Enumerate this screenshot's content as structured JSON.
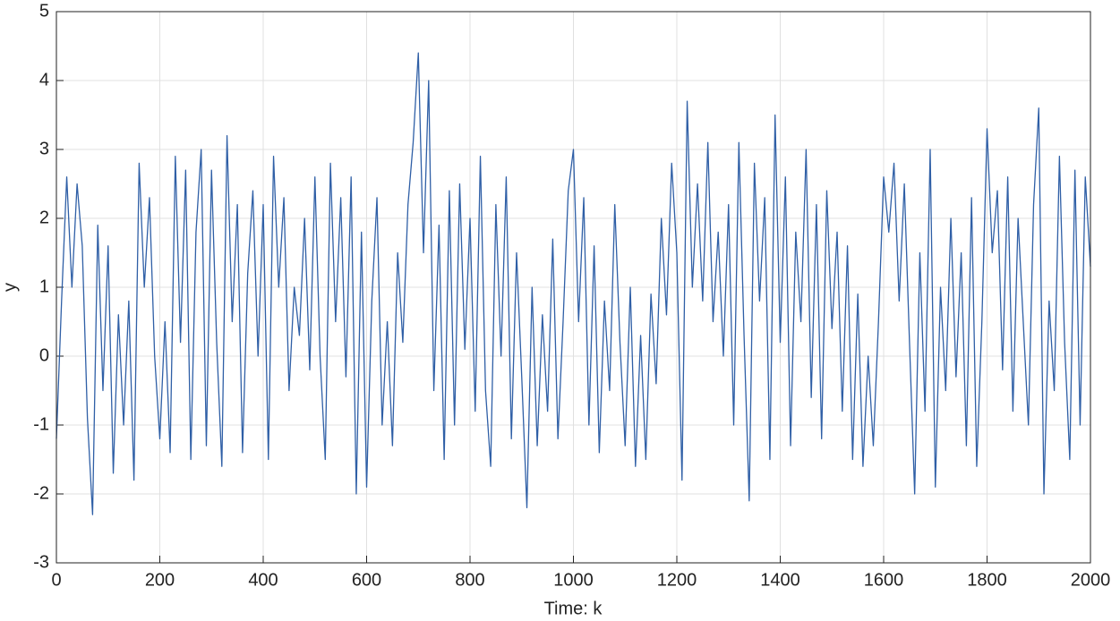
{
  "chart_data": {
    "type": "line",
    "xlabel": "Time: k",
    "ylabel": "y",
    "xlim": [
      0,
      2000
    ],
    "xticks": [
      0,
      200,
      400,
      600,
      800,
      1000,
      1200,
      1400,
      1600,
      1800,
      2000
    ],
    "ylim": [
      -3,
      5
    ],
    "yticks": [
      -3,
      -2,
      -1,
      0,
      1,
      2,
      3,
      4,
      5
    ],
    "grid": true,
    "x": [
      0,
      10,
      20,
      30,
      40,
      50,
      60,
      70,
      80,
      90,
      100,
      110,
      120,
      130,
      140,
      150,
      160,
      170,
      180,
      190,
      200,
      210,
      220,
      230,
      240,
      250,
      260,
      270,
      280,
      290,
      300,
      310,
      320,
      330,
      340,
      350,
      360,
      370,
      380,
      390,
      400,
      410,
      420,
      430,
      440,
      450,
      460,
      470,
      480,
      490,
      500,
      510,
      520,
      530,
      540,
      550,
      560,
      570,
      580,
      590,
      600,
      610,
      620,
      630,
      640,
      650,
      660,
      670,
      680,
      690,
      700,
      710,
      720,
      730,
      740,
      750,
      760,
      770,
      780,
      790,
      800,
      810,
      820,
      830,
      840,
      850,
      860,
      870,
      880,
      890,
      900,
      910,
      920,
      930,
      940,
      950,
      960,
      970,
      980,
      990,
      1000,
      1010,
      1020,
      1030,
      1040,
      1050,
      1060,
      1070,
      1080,
      1090,
      1100,
      1110,
      1120,
      1130,
      1140,
      1150,
      1160,
      1170,
      1180,
      1190,
      1200,
      1210,
      1220,
      1230,
      1240,
      1250,
      1260,
      1270,
      1280,
      1290,
      1300,
      1310,
      1320,
      1330,
      1340,
      1350,
      1360,
      1370,
      1380,
      1390,
      1400,
      1410,
      1420,
      1430,
      1440,
      1450,
      1460,
      1470,
      1480,
      1490,
      1500,
      1510,
      1520,
      1530,
      1540,
      1550,
      1560,
      1570,
      1580,
      1590,
      1600,
      1610,
      1620,
      1630,
      1640,
      1650,
      1660,
      1670,
      1680,
      1690,
      1700,
      1710,
      1720,
      1730,
      1740,
      1750,
      1760,
      1770,
      1780,
      1790,
      1800,
      1810,
      1820,
      1830,
      1840,
      1850,
      1860,
      1870,
      1880,
      1890,
      1900,
      1910,
      1920,
      1930,
      1940,
      1950,
      1960,
      1970,
      1980,
      1990,
      2000
    ],
    "series": [
      {
        "color": "#2f5fa6",
        "values": [
          -1.2,
          0.8,
          2.6,
          1.0,
          2.5,
          1.6,
          -0.9,
          -2.3,
          1.9,
          -0.5,
          1.6,
          -1.7,
          0.6,
          -1.0,
          0.8,
          -1.8,
          2.8,
          1.0,
          2.3,
          0.0,
          -1.2,
          0.5,
          -1.4,
          2.9,
          0.2,
          2.7,
          -1.5,
          1.8,
          3.0,
          -1.3,
          2.7,
          0.2,
          -1.6,
          3.2,
          0.5,
          2.2,
          -1.4,
          1.2,
          2.4,
          0.0,
          2.2,
          -1.5,
          2.9,
          1.0,
          2.3,
          -0.5,
          1.0,
          0.3,
          2.0,
          -0.2,
          2.6,
          0.0,
          -1.5,
          2.8,
          0.5,
          2.3,
          -0.3,
          2.6,
          -2.0,
          1.8,
          -1.9,
          0.8,
          2.3,
          -1.0,
          0.5,
          -1.3,
          1.5,
          0.2,
          2.2,
          3.1,
          4.4,
          1.5,
          4.0,
          -0.5,
          1.9,
          -1.5,
          2.4,
          -1.0,
          2.5,
          0.1,
          2.0,
          -0.8,
          2.9,
          -0.5,
          -1.6,
          2.2,
          0.0,
          2.6,
          -1.2,
          1.5,
          -0.3,
          -2.2,
          1.0,
          -1.3,
          0.6,
          -0.8,
          1.7,
          -1.2,
          0.5,
          2.4,
          3.0,
          0.5,
          2.3,
          -1.0,
          1.6,
          -1.4,
          0.8,
          -0.5,
          2.2,
          0.2,
          -1.3,
          1.0,
          -1.6,
          0.3,
          -1.5,
          0.9,
          -0.4,
          2.0,
          0.6,
          2.8,
          1.5,
          -1.8,
          3.7,
          1.0,
          2.5,
          0.8,
          3.1,
          0.5,
          1.8,
          0.0,
          2.2,
          -1.0,
          3.1,
          0.3,
          -2.1,
          2.8,
          0.8,
          2.3,
          -1.5,
          3.5,
          0.2,
          2.6,
          -1.3,
          1.8,
          0.5,
          3.0,
          -0.6,
          2.2,
          -1.2,
          2.4,
          0.4,
          1.8,
          -0.8,
          1.6,
          -1.5,
          0.9,
          -1.6,
          0.0,
          -1.3,
          0.5,
          2.6,
          1.8,
          2.8,
          0.8,
          2.5,
          0.2,
          -2.0,
          1.5,
          -0.8,
          3.0,
          -1.9,
          1.0,
          -0.5,
          2.0,
          -0.3,
          1.5,
          -1.3,
          2.3,
          -1.6,
          0.5,
          3.3,
          1.5,
          2.4,
          -0.2,
          2.6,
          -0.8,
          2.0,
          0.5,
          -1.0,
          2.2,
          3.6,
          -2.0,
          0.8,
          -0.5,
          2.9,
          0.2,
          -1.5,
          2.7,
          -1.0,
          2.6,
          1.3
        ]
      }
    ]
  }
}
